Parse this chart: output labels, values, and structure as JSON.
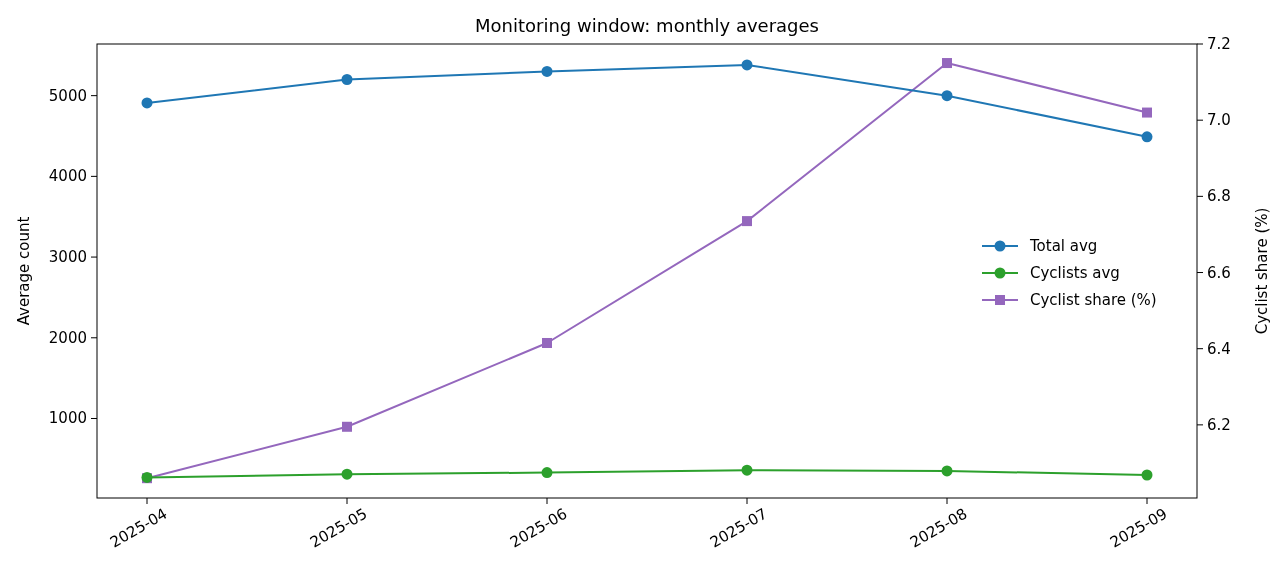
{
  "chart_data": {
    "type": "line",
    "title": "Monitoring window: monthly averages",
    "ylabel": "Average count",
    "y2label": "Cyclist share (%)",
    "categories": [
      "2025-04",
      "2025-05",
      "2025-06",
      "2025-07",
      "2025-08",
      "2025-09"
    ],
    "series": [
      {
        "name": "Total avg",
        "color": "#1f77b4",
        "marker": "circle",
        "values": [
          4910,
          5200,
          5300,
          5380,
          5000,
          4490
        ]
      },
      {
        "name": "Cyclists avg",
        "color": "#2ca02c",
        "marker": "circle",
        "values": [
          270,
          310,
          330,
          360,
          350,
          300
        ]
      },
      {
        "name": "Cyclist share (%)",
        "color": "#9467bd",
        "marker": "square",
        "axis": "y2",
        "values": [
          6.06,
          6.195,
          6.415,
          6.735,
          7.15,
          7.02
        ]
      }
    ],
    "ylim": [
      15,
      5640
    ],
    "yticks": [
      1000,
      2000,
      3000,
      4000,
      5000
    ],
    "y2lim": [
      6.008,
      7.2
    ],
    "y2ticks": [
      6.2,
      6.4,
      6.6,
      6.8,
      {
        "value": 7,
        "label": "7.0"
      },
      7.2
    ],
    "legend": "right",
    "grid": false,
    "line_style": "solid"
  }
}
